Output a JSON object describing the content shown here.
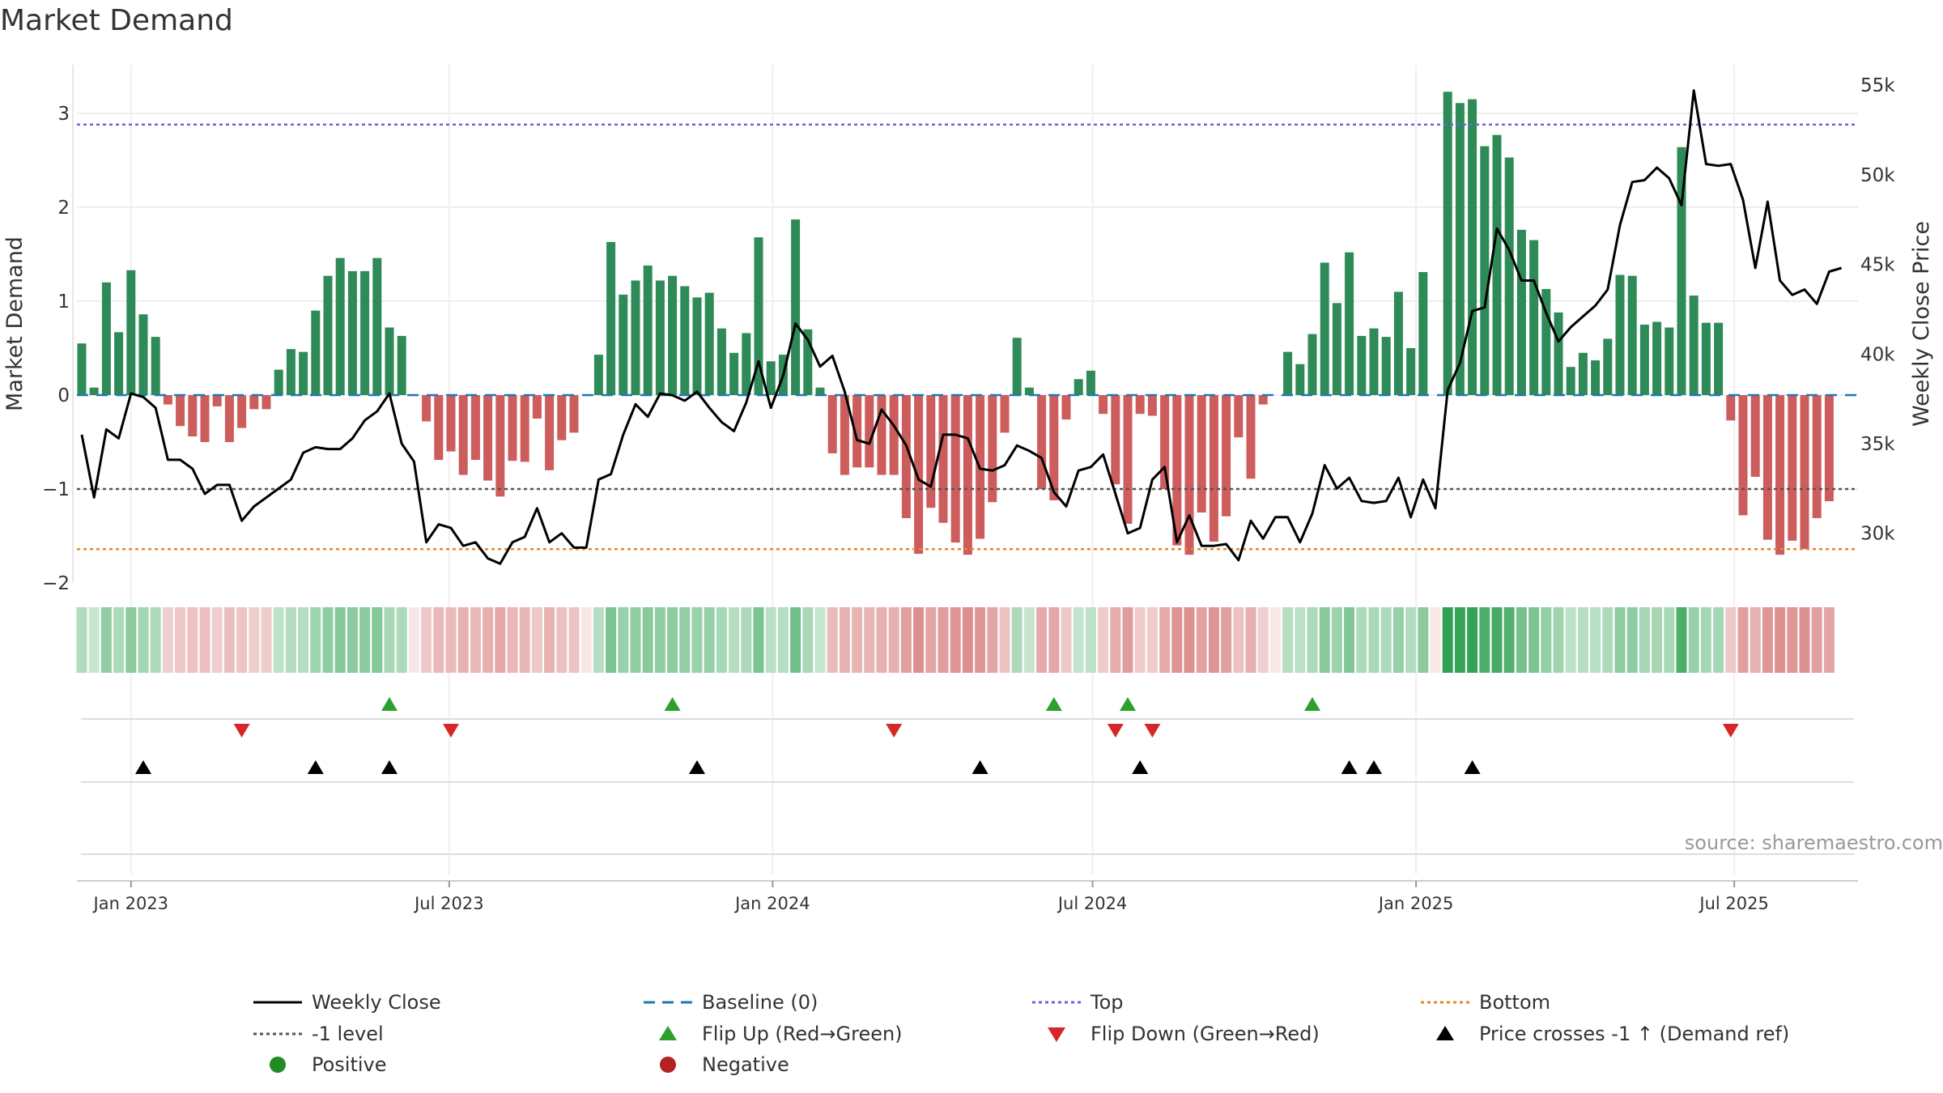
{
  "title": "Market Demand",
  "source": "source: sharemaestro.com",
  "colors": {
    "positive": "#2e8b57",
    "negative": "#cd5c5c",
    "price": "#000000",
    "baseline": "#1f77b4",
    "top": "#6666dd",
    "bottom": "#e08a2a",
    "level": "#555555",
    "flip_up": "#2ca02c",
    "flip_down": "#d62728",
    "cross": "#000000",
    "legend_positive": "#228b22",
    "legend_negative": "#b22222"
  },
  "chart_data": {
    "type": "bar+line",
    "title": "Market Demand",
    "ylabel": "Market Demand",
    "y2label": "Weekly Close Price",
    "ylim": [
      -2,
      3.3
    ],
    "y2lim": [
      27000,
      56000
    ],
    "y_ticks": [
      3,
      2,
      1,
      0,
      -1,
      -2
    ],
    "y_tick_labels": [
      "3",
      "2",
      "1",
      "0",
      "−1",
      "−2"
    ],
    "y2_ticks": [
      55000,
      50000,
      45000,
      40000,
      35000,
      30000
    ],
    "y2_tick_labels": [
      "55k",
      "50k",
      "45k",
      "40k",
      "35k",
      "30k"
    ],
    "x_start": "2022-12-04",
    "x_ticks": [
      {
        "date": "2023-01-01",
        "label": "Jan 2023"
      },
      {
        "date": "2023-07-01",
        "label": "Jul 2023"
      },
      {
        "date": "2024-01-01",
        "label": "Jan 2024"
      },
      {
        "date": "2024-07-01",
        "label": "Jul 2024"
      },
      {
        "date": "2025-01-01",
        "label": "Jan 2025"
      },
      {
        "date": "2025-07-01",
        "label": "Jul 2025"
      }
    ],
    "top_level": 2.88,
    "bottom_level": -1.64,
    "minus_one_level": -1,
    "demand": [
      0.55,
      0.08,
      1.2,
      0.67,
      1.33,
      0.86,
      0.62,
      -0.1,
      -0.33,
      -0.44,
      -0.5,
      -0.12,
      -0.5,
      -0.35,
      -0.15,
      -0.15,
      0.27,
      0.49,
      0.46,
      0.9,
      1.27,
      1.46,
      1.32,
      1.32,
      1.46,
      0.72,
      0.63,
      0.0,
      -0.28,
      -0.69,
      -0.6,
      -0.85,
      -0.69,
      -0.91,
      -1.08,
      -0.7,
      -0.71,
      -0.25,
      -0.8,
      -0.48,
      -0.4,
      0.0,
      0.43,
      1.63,
      1.07,
      1.22,
      1.38,
      1.22,
      1.27,
      1.16,
      1.04,
      1.09,
      0.71,
      0.45,
      0.66,
      1.68,
      0.36,
      0.43,
      1.87,
      0.7,
      0.08,
      -0.62,
      -0.85,
      -0.77,
      -0.77,
      -0.85,
      -0.85,
      -1.31,
      -1.69,
      -1.2,
      -1.36,
      -1.57,
      -1.7,
      -1.53,
      -1.14,
      -0.4,
      0.61,
      0.08,
      -1.0,
      -1.12,
      -0.26,
      0.17,
      0.26,
      -0.2,
      -0.95,
      -1.37,
      -0.2,
      -0.22,
      -1.0,
      -1.6,
      -1.7,
      -1.25,
      -1.56,
      -1.29,
      -0.45,
      -0.89,
      -0.1,
      0.0,
      0.46,
      0.33,
      0.65,
      1.41,
      0.98,
      1.52,
      0.63,
      0.71,
      0.62,
      1.1,
      0.5,
      1.31,
      0.0,
      3.23,
      3.11,
      3.15,
      2.65,
      2.77,
      2.53,
      1.76,
      1.65,
      1.13,
      0.88,
      0.3,
      0.45,
      0.37,
      0.6,
      1.28,
      1.27,
      0.75,
      0.78,
      0.72,
      2.64,
      1.06,
      0.77,
      0.77,
      -0.27,
      -1.28,
      -0.87,
      -1.54,
      -1.7,
      -1.55,
      -1.64,
      -1.31,
      -1.13
    ],
    "price": [
      35500,
      32000,
      35800,
      35300,
      37800,
      37600,
      37000,
      34100,
      34100,
      33600,
      32200,
      32700,
      32700,
      30700,
      31500,
      32000,
      32500,
      33000,
      34500,
      34800,
      34700,
      34700,
      35300,
      36300,
      36800,
      37800,
      35000,
      34000,
      29500,
      30500,
      30300,
      29300,
      29500,
      28600,
      28300,
      29500,
      29800,
      31400,
      29500,
      30000,
      29200,
      29200,
      33000,
      33300,
      35500,
      37200,
      36500,
      37800,
      37700,
      37400,
      37900,
      37000,
      36200,
      35700,
      37300,
      39600,
      37000,
      38800,
      41700,
      40800,
      39300,
      39900,
      37900,
      35200,
      35000,
      36900,
      36000,
      34900,
      33000,
      32600,
      35500,
      35500,
      35300,
      33600,
      33500,
      33800,
      34900,
      34600,
      34200,
      32300,
      31500,
      33500,
      33700,
      34400,
      32200,
      30000,
      30300,
      33000,
      33700,
      29500,
      31000,
      29300,
      29300,
      29400,
      28500,
      30700,
      29700,
      30900,
      30900,
      29500,
      31100,
      33800,
      32500,
      33100,
      31800,
      31700,
      31800,
      33100,
      30900,
      33000,
      31400,
      38000,
      39500,
      42400,
      42600,
      47000,
      45800,
      44100,
      44100,
      42300,
      40700,
      41500,
      42100,
      42700,
      43600,
      47200,
      49600,
      49700,
      50400,
      49800,
      48300,
      54700,
      50600,
      50500,
      50600,
      48600,
      44800,
      48500,
      44100,
      43300,
      43600,
      42800,
      44600,
      44800
    ],
    "flip_up_dates": [
      "2023-05-28",
      "2023-11-05",
      "2024-06-09",
      "2024-07-21",
      "2024-11-03"
    ],
    "flip_down_dates": [
      "2023-03-05",
      "2023-07-02",
      "2024-03-10",
      "2024-07-14",
      "2024-08-04",
      "2025-06-29"
    ],
    "price_cross_dates": [
      "2023-01-08",
      "2023-04-16",
      "2023-05-28",
      "2023-11-19",
      "2024-04-28",
      "2024-07-28",
      "2024-11-24",
      "2024-12-08",
      "2025-02-02"
    ],
    "legend": [
      {
        "label": "Weekly Close",
        "kind": "line-solid",
        "color_key": "price"
      },
      {
        "label": "Baseline (0)",
        "kind": "line-dashed",
        "color_key": "baseline"
      },
      {
        "label": "Top",
        "kind": "line-dotted",
        "color_key": "top"
      },
      {
        "label": "Bottom",
        "kind": "line-dotted",
        "color_key": "bottom"
      },
      {
        "label": "-1 level",
        "kind": "line-dotted",
        "color_key": "level"
      },
      {
        "label": "Flip Up (Red→Green)",
        "kind": "tri-up",
        "color_key": "flip_up"
      },
      {
        "label": "Flip Down (Green→Red)",
        "kind": "tri-down",
        "color_key": "flip_down"
      },
      {
        "label": "Price crosses -1 ↑ (Demand ref)",
        "kind": "tri-up",
        "color_key": "cross"
      },
      {
        "label": "Positive",
        "kind": "dot",
        "color_key": "legend_positive"
      },
      {
        "label": "Negative",
        "kind": "dot",
        "color_key": "legend_negative"
      }
    ]
  }
}
